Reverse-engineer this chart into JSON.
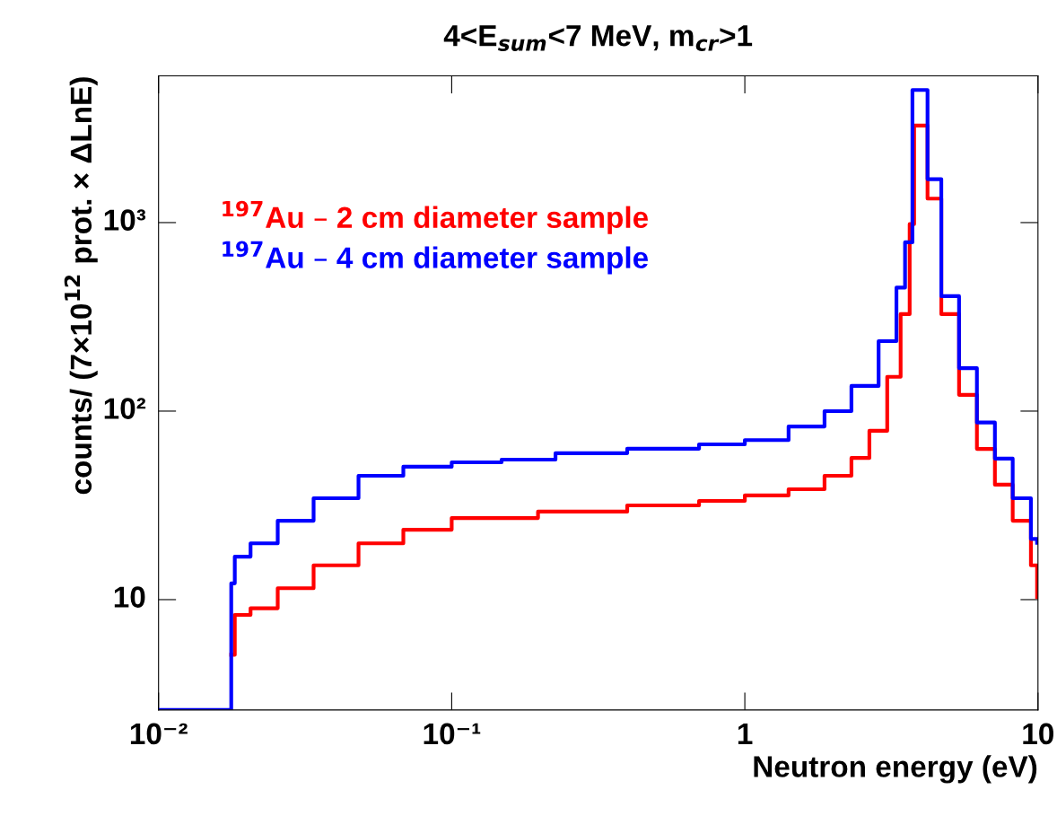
{
  "chart_data": {
    "type": "step",
    "title": "4<E$_{sum}$<7 MeV, m$_{cr}$>1",
    "xlabel": "Neutron energy (eV)",
    "ylabel": "counts/ (7×10$^{12}$ prot. × ΔLnE)",
    "log": "xy",
    "grid": false,
    "legend": false,
    "xlim": [
      0.01,
      10
    ],
    "ylim": [
      2.6,
      6000
    ],
    "xticks": [
      {
        "value": 0.01,
        "label": "10⁻²"
      },
      {
        "value": 0.1,
        "label": "10⁻¹"
      },
      1,
      10
    ],
    "yticks": [
      10,
      {
        "value": 100,
        "label": "10²"
      },
      {
        "value": 1000,
        "label": "10³"
      }
    ],
    "series": [
      {
        "name": "$^{197}$Au – 2 cm diameter sample",
        "color": "#ff0000",
        "x": [
          0.0177,
          0.0182,
          0.0206,
          0.0255,
          0.0338,
          0.0481,
          0.0684,
          0.1,
          0.197,
          0.397,
          0.698,
          1.0,
          1.41,
          1.87,
          2.31,
          2.66,
          3.06,
          3.4,
          3.65,
          3.78,
          4.0,
          4.2,
          4.68,
          5.38,
          6.19,
          7.13,
          8.2,
          9.46,
          9.93
        ],
        "values": [
          5.1,
          8.3,
          9.0,
          11.5,
          15.2,
          19.9,
          23.5,
          27.1,
          29.3,
          31.6,
          33.4,
          35.7,
          38.5,
          45.4,
          56.4,
          78.6,
          152,
          327,
          981,
          3270,
          3270,
          1340,
          327,
          122,
          63,
          40.7,
          26.2,
          15.2,
          10.3
        ]
      },
      {
        "name": "$^{197}$Au – 4 cm diameter sample",
        "color": "#0000ff",
        "x": [
          0.01,
          0.0177,
          0.0182,
          0.0206,
          0.0255,
          0.0338,
          0.0481,
          0.0684,
          0.1,
          0.148,
          0.226,
          0.397,
          0.698,
          1.0,
          1.41,
          1.87,
          2.31,
          2.86,
          3.29,
          3.52,
          3.73,
          4.0,
          4.2,
          4.68,
          5.38,
          6.19,
          7.13,
          8.2,
          9.46,
          9.93
        ],
        "values": [
          2.6,
          12.2,
          16.9,
          19.9,
          26.2,
          34.5,
          45.4,
          50.7,
          53.5,
          55.3,
          59.8,
          63.2,
          66.6,
          70.2,
          82.9,
          100,
          136,
          235,
          452,
          786,
          5050,
          5050,
          1700,
          407,
          169,
          87,
          56,
          34.5,
          21,
          20
        ]
      }
    ]
  }
}
